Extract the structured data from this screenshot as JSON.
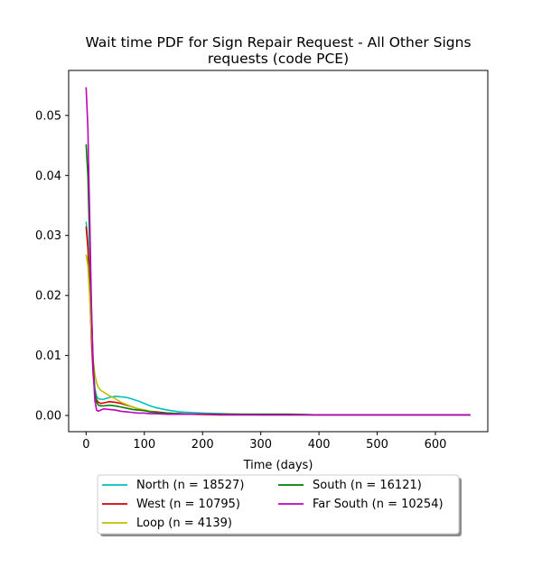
{
  "chart_data": {
    "type": "line",
    "title_lines": [
      "Wait time PDF for Sign Repair Request - All Other Signs",
      "requests (code PCE)"
    ],
    "xlabel": "Time (days)",
    "ylabel": "",
    "xlim": [
      -30,
      690
    ],
    "ylim": [
      -0.0027,
      0.0575
    ],
    "xticks": [
      0,
      100,
      200,
      300,
      400,
      500,
      600
    ],
    "xtick_labels": [
      "0",
      "100",
      "200",
      "300",
      "400",
      "500",
      "600"
    ],
    "yticks": [
      0.0,
      0.01,
      0.02,
      0.03,
      0.04,
      0.05
    ],
    "ytick_labels": [
      "0.00",
      "0.01",
      "0.02",
      "0.03",
      "0.04",
      "0.05"
    ],
    "grid": false,
    "legend_position": "bottom-center-outside",
    "series": [
      {
        "name": "North (n = 18527)",
        "color": "#00bfbf",
        "x": [
          0,
          3,
          6,
          9,
          12,
          15,
          18,
          21,
          25,
          30,
          40,
          50,
          60,
          70,
          80,
          90,
          100,
          110,
          120,
          140,
          160,
          180,
          200,
          230,
          260,
          300,
          350,
          400,
          450,
          500,
          550,
          600,
          660
        ],
        "y": [
          0.0323,
          0.029,
          0.022,
          0.014,
          0.008,
          0.0045,
          0.0032,
          0.0028,
          0.0027,
          0.0027,
          0.003,
          0.0032,
          0.0031,
          0.003,
          0.0027,
          0.0024,
          0.002,
          0.0016,
          0.0013,
          0.0009,
          0.0006,
          0.0005,
          0.0004,
          0.0003,
          0.0002,
          0.0002,
          0.0002,
          0.0001,
          0.0001,
          0.0001,
          0.0001,
          0.0001,
          0.0001
        ]
      },
      {
        "name": "West (n = 10795)",
        "color": "#d40000",
        "x": [
          0,
          3,
          6,
          9,
          12,
          15,
          18,
          21,
          25,
          30,
          40,
          50,
          60,
          70,
          80,
          90,
          100,
          110,
          120,
          140,
          160,
          180,
          200,
          230,
          260,
          300,
          350,
          400,
          450,
          500,
          550,
          600,
          660
        ],
        "y": [
          0.0315,
          0.028,
          0.021,
          0.013,
          0.007,
          0.0038,
          0.0026,
          0.0022,
          0.002,
          0.0021,
          0.0023,
          0.0022,
          0.002,
          0.0017,
          0.0014,
          0.0011,
          0.0009,
          0.0007,
          0.0006,
          0.0004,
          0.0003,
          0.0002,
          0.0002,
          0.0002,
          0.0002,
          0.0001,
          0.0001,
          0.0001,
          0.0001,
          0.0001,
          0.0001,
          0.0001,
          0.0001
        ]
      },
      {
        "name": "Loop (n = 4139)",
        "color": "#bfbf00",
        "x": [
          0,
          3,
          6,
          9,
          12,
          15,
          18,
          21,
          25,
          30,
          35,
          40,
          50,
          60,
          70,
          80,
          90,
          100,
          110,
          120,
          140,
          160,
          180,
          200,
          230,
          260,
          300,
          350,
          400,
          450,
          500,
          550,
          600,
          660
        ],
        "y": [
          0.0268,
          0.025,
          0.02,
          0.014,
          0.0095,
          0.0068,
          0.0055,
          0.0047,
          0.0042,
          0.0039,
          0.0036,
          0.0033,
          0.0028,
          0.0022,
          0.0018,
          0.0014,
          0.0011,
          0.0009,
          0.0007,
          0.0005,
          0.0003,
          0.0002,
          0.0002,
          0.0001,
          0.0001,
          0.0001,
          0.0001,
          0.0001,
          0.0001,
          0.0001,
          0.0001,
          0.0001,
          0.0001,
          0.0001
        ]
      },
      {
        "name": "South (n = 16121)",
        "color": "#007f00",
        "x": [
          0,
          3,
          6,
          9,
          12,
          15,
          18,
          21,
          25,
          30,
          40,
          50,
          60,
          70,
          80,
          90,
          100,
          110,
          120,
          140,
          160,
          180,
          200,
          230,
          260,
          300,
          350,
          400,
          450,
          500,
          550,
          600,
          660
        ],
        "y": [
          0.0452,
          0.04,
          0.029,
          0.018,
          0.009,
          0.004,
          0.0022,
          0.0017,
          0.0016,
          0.0016,
          0.0017,
          0.0016,
          0.0014,
          0.0012,
          0.001,
          0.0009,
          0.0008,
          0.0006,
          0.0005,
          0.0004,
          0.0003,
          0.0002,
          0.0002,
          0.0002,
          0.0002,
          0.0002,
          0.0002,
          0.0001,
          0.0001,
          0.0001,
          0.0001,
          0.0001,
          0.0001
        ]
      },
      {
        "name": "Far South (n = 10254)",
        "color": "#bf00bf",
        "x": [
          0,
          3,
          6,
          9,
          12,
          15,
          18,
          21,
          25,
          30,
          40,
          50,
          60,
          70,
          80,
          90,
          100,
          110,
          120,
          140,
          160,
          180,
          200,
          230,
          260,
          300,
          350,
          400,
          450,
          500,
          550,
          600,
          660
        ],
        "y": [
          0.0547,
          0.048,
          0.034,
          0.019,
          0.008,
          0.0025,
          0.0009,
          0.0007,
          0.0009,
          0.0011,
          0.001,
          0.0009,
          0.0007,
          0.0006,
          0.0005,
          0.0004,
          0.0004,
          0.0003,
          0.0003,
          0.0002,
          0.0002,
          0.0002,
          0.0002,
          0.0001,
          0.0001,
          0.0001,
          0.0001,
          0.0001,
          0.0001,
          0.0001,
          0.0001,
          0.0001,
          0.0001
        ]
      }
    ]
  }
}
